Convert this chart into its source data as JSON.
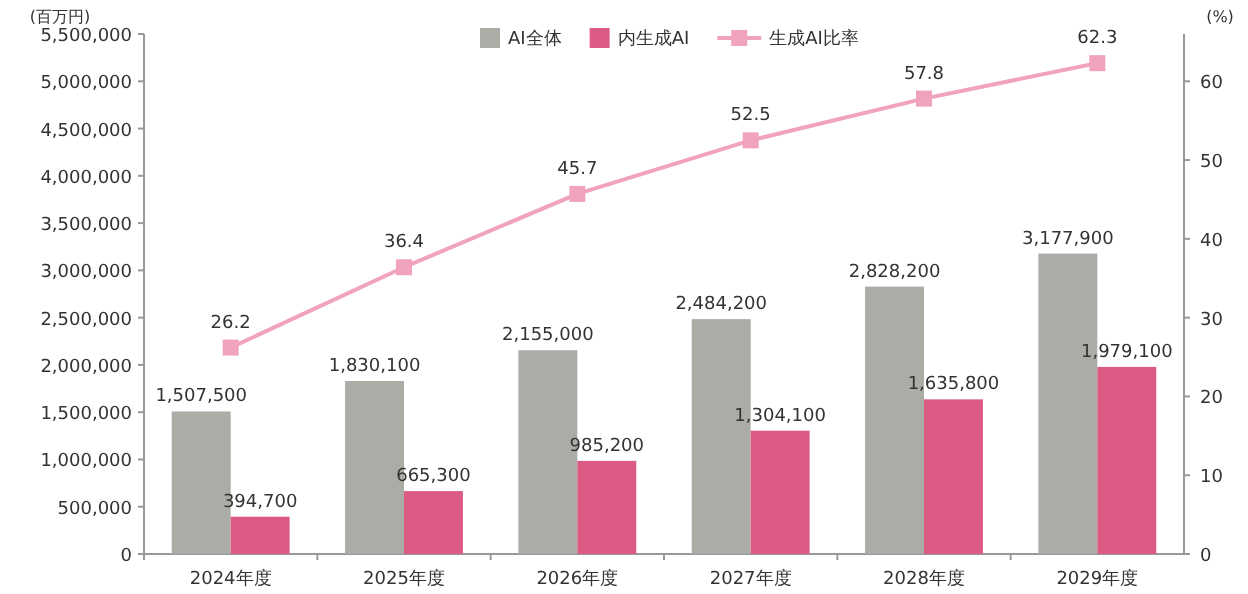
{
  "chart_data": {
    "type": "bar",
    "ylabel": "(百万円)",
    "y2label": "(%)",
    "categories": [
      "2024年度",
      "2025年度",
      "2026年度",
      "2027年度",
      "2028年度",
      "2029年度"
    ],
    "series": [
      {
        "name": "AI全体",
        "color": "#abaca5",
        "values": [
          1507500,
          1830100,
          2155000,
          2484200,
          2828200,
          3177900
        ],
        "value_labels": [
          "1,507,500",
          "1,830,100",
          "2,155,000",
          "2,484,200",
          "2,828,200",
          "3,177,900"
        ]
      },
      {
        "name": "内生成AI",
        "color": "#dc5b84",
        "values": [
          394700,
          665300,
          985200,
          1304100,
          1635800,
          1979100
        ],
        "value_labels": [
          "394,700",
          "665,300",
          "985,200",
          "1,304,100",
          "1,635,800",
          "1,979,100"
        ]
      },
      {
        "name": "生成AI比率",
        "type": "line",
        "axis": "y2",
        "color": "#f0a3bb",
        "marker": "square",
        "values": [
          26.2,
          36.4,
          45.7,
          52.5,
          57.8,
          62.3
        ],
        "value_labels": [
          "26.2",
          "36.4",
          "45.7",
          "52.5",
          "57.8",
          "62.3"
        ]
      }
    ],
    "ylim": [
      0,
      5500000
    ],
    "yticks": [
      0,
      {
        "value": 500000,
        "label": "500,000"
      },
      {
        "value": 1000000,
        "label": "1,000,000"
      },
      {
        "value": 1500000,
        "label": "1,500,000"
      },
      {
        "value": 2000000,
        "label": "2,000,000"
      },
      {
        "value": 2500000,
        "label": "2,500,000"
      },
      {
        "value": 3000000,
        "label": "3,000,000"
      },
      {
        "value": 3500000,
        "label": "3,500,000"
      },
      {
        "value": 4000000,
        "label": "4,000,000"
      },
      {
        "value": 4500000,
        "label": "4,500,000"
      },
      {
        "value": 5000000,
        "label": "5,000,000"
      },
      {
        "value": 5500000,
        "label": "5,500,000"
      }
    ],
    "y2lim": [
      0,
      66
    ],
    "y2ticks": [
      0,
      10,
      20,
      30,
      40,
      50,
      60
    ],
    "legend": "top",
    "grid": false
  }
}
